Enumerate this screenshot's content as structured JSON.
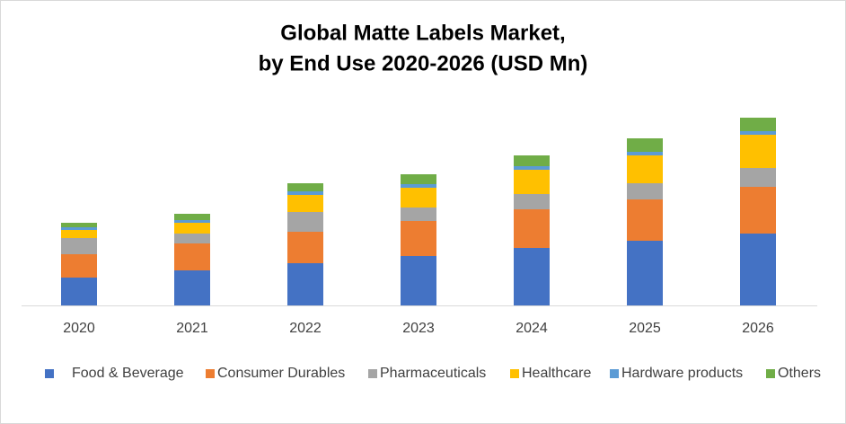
{
  "chart_data": {
    "type": "stacked-bar",
    "title": [
      "Global Matte Labels Market,",
      "by End Use 2020-2026 (USD Mn)"
    ],
    "categories": [
      "2020",
      "2021",
      "2022",
      "2023",
      "2024",
      "2025",
      "2026"
    ],
    "series": [
      {
        "name": "Food & Beverage",
        "color": "#4472c4",
        "values": [
          31,
          39,
          47,
          55,
          64,
          72,
          80
        ]
      },
      {
        "name": "Consumer Durables",
        "color": "#ed7d31",
        "values": [
          26,
          30,
          35,
          39,
          43,
          46,
          52
        ]
      },
      {
        "name": "Pharmaceuticals",
        "color": "#a5a5a5",
        "values": [
          18,
          11,
          22,
          15,
          17,
          18,
          21
        ]
      },
      {
        "name": "Healthcare",
        "color": "#ffc000",
        "values": [
          9,
          12,
          19,
          22,
          27,
          31,
          37
        ]
      },
      {
        "name": "Hardware products",
        "color": "#5b9bd5",
        "values": [
          3,
          3,
          4,
          4,
          4,
          4,
          4
        ]
      },
      {
        "name": "Others",
        "color": "#70ad47",
        "values": [
          5,
          7,
          9,
          11,
          12,
          15,
          15
        ]
      }
    ],
    "ylim": [
      0,
      230
    ]
  }
}
